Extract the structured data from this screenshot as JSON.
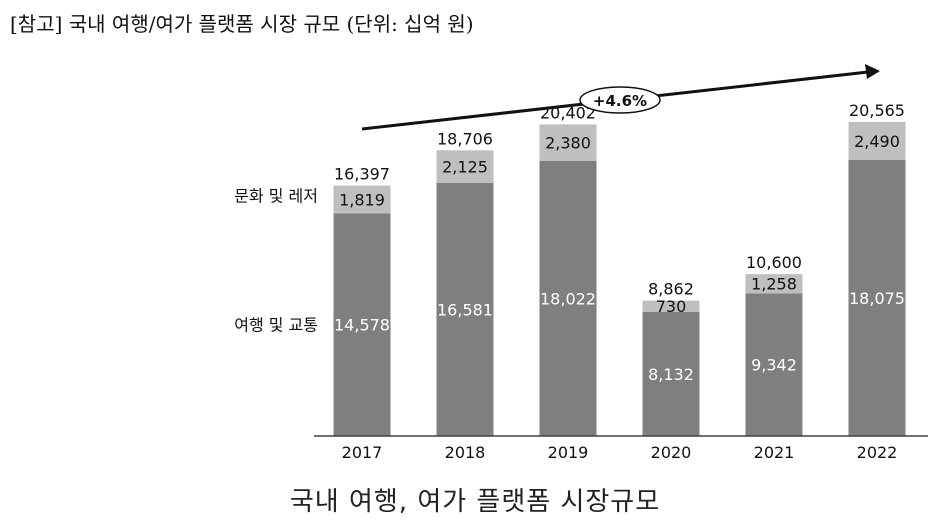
{
  "header": {
    "title": "[참고] 국내 여행/여가 플랫폼 시장 규모 (단위: 십억 원)"
  },
  "footer": {
    "caption": "국내 여행, 여가 플랫폼 시장규모"
  },
  "colors": {
    "travel": "#7f7f7f",
    "leisure": "#bfbfbf",
    "axis": "#404040",
    "arrow": "#111111"
  },
  "chart_data": {
    "type": "bar",
    "stacked": true,
    "categories": [
      "2017",
      "2018",
      "2019",
      "2020",
      "2021",
      "2022"
    ],
    "series": [
      {
        "name": "여행 및 교통",
        "values": [
          14578,
          16581,
          18022,
          8132,
          9342,
          18075
        ]
      },
      {
        "name": "문화 및 레저",
        "values": [
          1819,
          2125,
          2380,
          730,
          1258,
          2490
        ]
      }
    ],
    "totals": [
      16397,
      18706,
      20402,
      8862,
      10600,
      20565
    ],
    "annotation": "+4.6%",
    "ylim": [
      0,
      22000
    ],
    "grid": false,
    "legend": "left"
  }
}
